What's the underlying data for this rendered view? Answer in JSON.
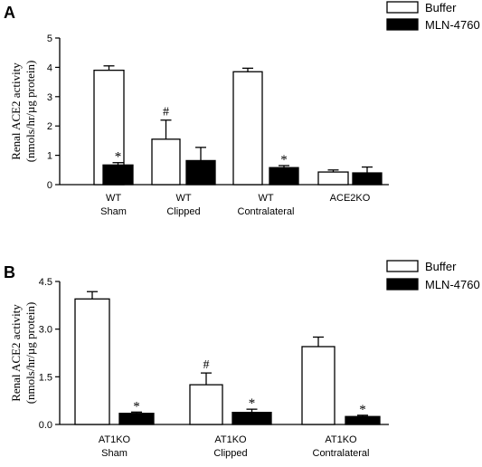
{
  "colors": {
    "buffer_fill": "#ffffff",
    "mln_fill": "#000000",
    "stroke": "#000000"
  },
  "chart_data": [
    {
      "type": "bar",
      "panel_label": "A",
      "ylabel": [
        "Renal ACE2 activity",
        "(nmols/hr/µg protein)"
      ],
      "ylim": [
        0,
        5
      ],
      "yticks": [
        0,
        1,
        2,
        3,
        4,
        5
      ],
      "ytick_labels": [
        "0",
        "1",
        "2",
        "3",
        "4",
        "5"
      ],
      "categories": [
        [
          "WT",
          "Sham"
        ],
        [
          "WT",
          "Clipped"
        ],
        [
          "WT",
          "Contralateral"
        ],
        [
          "ACE2KO"
        ]
      ],
      "series": [
        {
          "name": "Buffer",
          "fill": "white",
          "values": [
            3.9,
            1.55,
            3.85,
            0.43
          ],
          "errors": [
            0.15,
            0.65,
            0.12,
            0.07
          ]
        },
        {
          "name": "MLN-4760",
          "fill": "black",
          "values": [
            0.67,
            0.82,
            0.58,
            0.4
          ],
          "errors": [
            0.08,
            0.45,
            0.07,
            0.2
          ]
        }
      ],
      "annotations": [
        {
          "series": 0,
          "index": 1,
          "text": "#"
        },
        {
          "series": 1,
          "index": 0,
          "text": "*"
        },
        {
          "series": 1,
          "index": 2,
          "text": "*"
        }
      ],
      "legend": {
        "position": "top-right",
        "entries": [
          "Buffer",
          "MLN-4760"
        ]
      },
      "grid": false
    },
    {
      "type": "bar",
      "panel_label": "B",
      "ylabel": [
        "Renal ACE2 activity",
        "(nmols/hr/µg protein)"
      ],
      "ylim": [
        0,
        4.5
      ],
      "yticks": [
        0,
        1.5,
        3,
        4.5
      ],
      "ytick_labels": [
        "0.0",
        "1.5",
        "3.0",
        "4.5"
      ],
      "categories": [
        [
          "AT1KO",
          "Sham"
        ],
        [
          "AT1KO",
          "Clipped"
        ],
        [
          "AT1KO",
          "Contralateral"
        ]
      ],
      "series": [
        {
          "name": "Buffer",
          "fill": "white",
          "values": [
            3.95,
            1.25,
            2.45
          ],
          "errors": [
            0.23,
            0.37,
            0.3
          ]
        },
        {
          "name": "MLN-4760",
          "fill": "black",
          "values": [
            0.35,
            0.38,
            0.25
          ],
          "errors": [
            0.04,
            0.1,
            0.04
          ]
        }
      ],
      "annotations": [
        {
          "series": 0,
          "index": 1,
          "text": "#"
        },
        {
          "series": 1,
          "index": 0,
          "text": "*"
        },
        {
          "series": 1,
          "index": 1,
          "text": "*"
        },
        {
          "series": 1,
          "index": 2,
          "text": "*"
        }
      ],
      "legend": {
        "position": "top-right",
        "entries": [
          "Buffer",
          "MLN-4760"
        ]
      },
      "grid": false
    }
  ]
}
